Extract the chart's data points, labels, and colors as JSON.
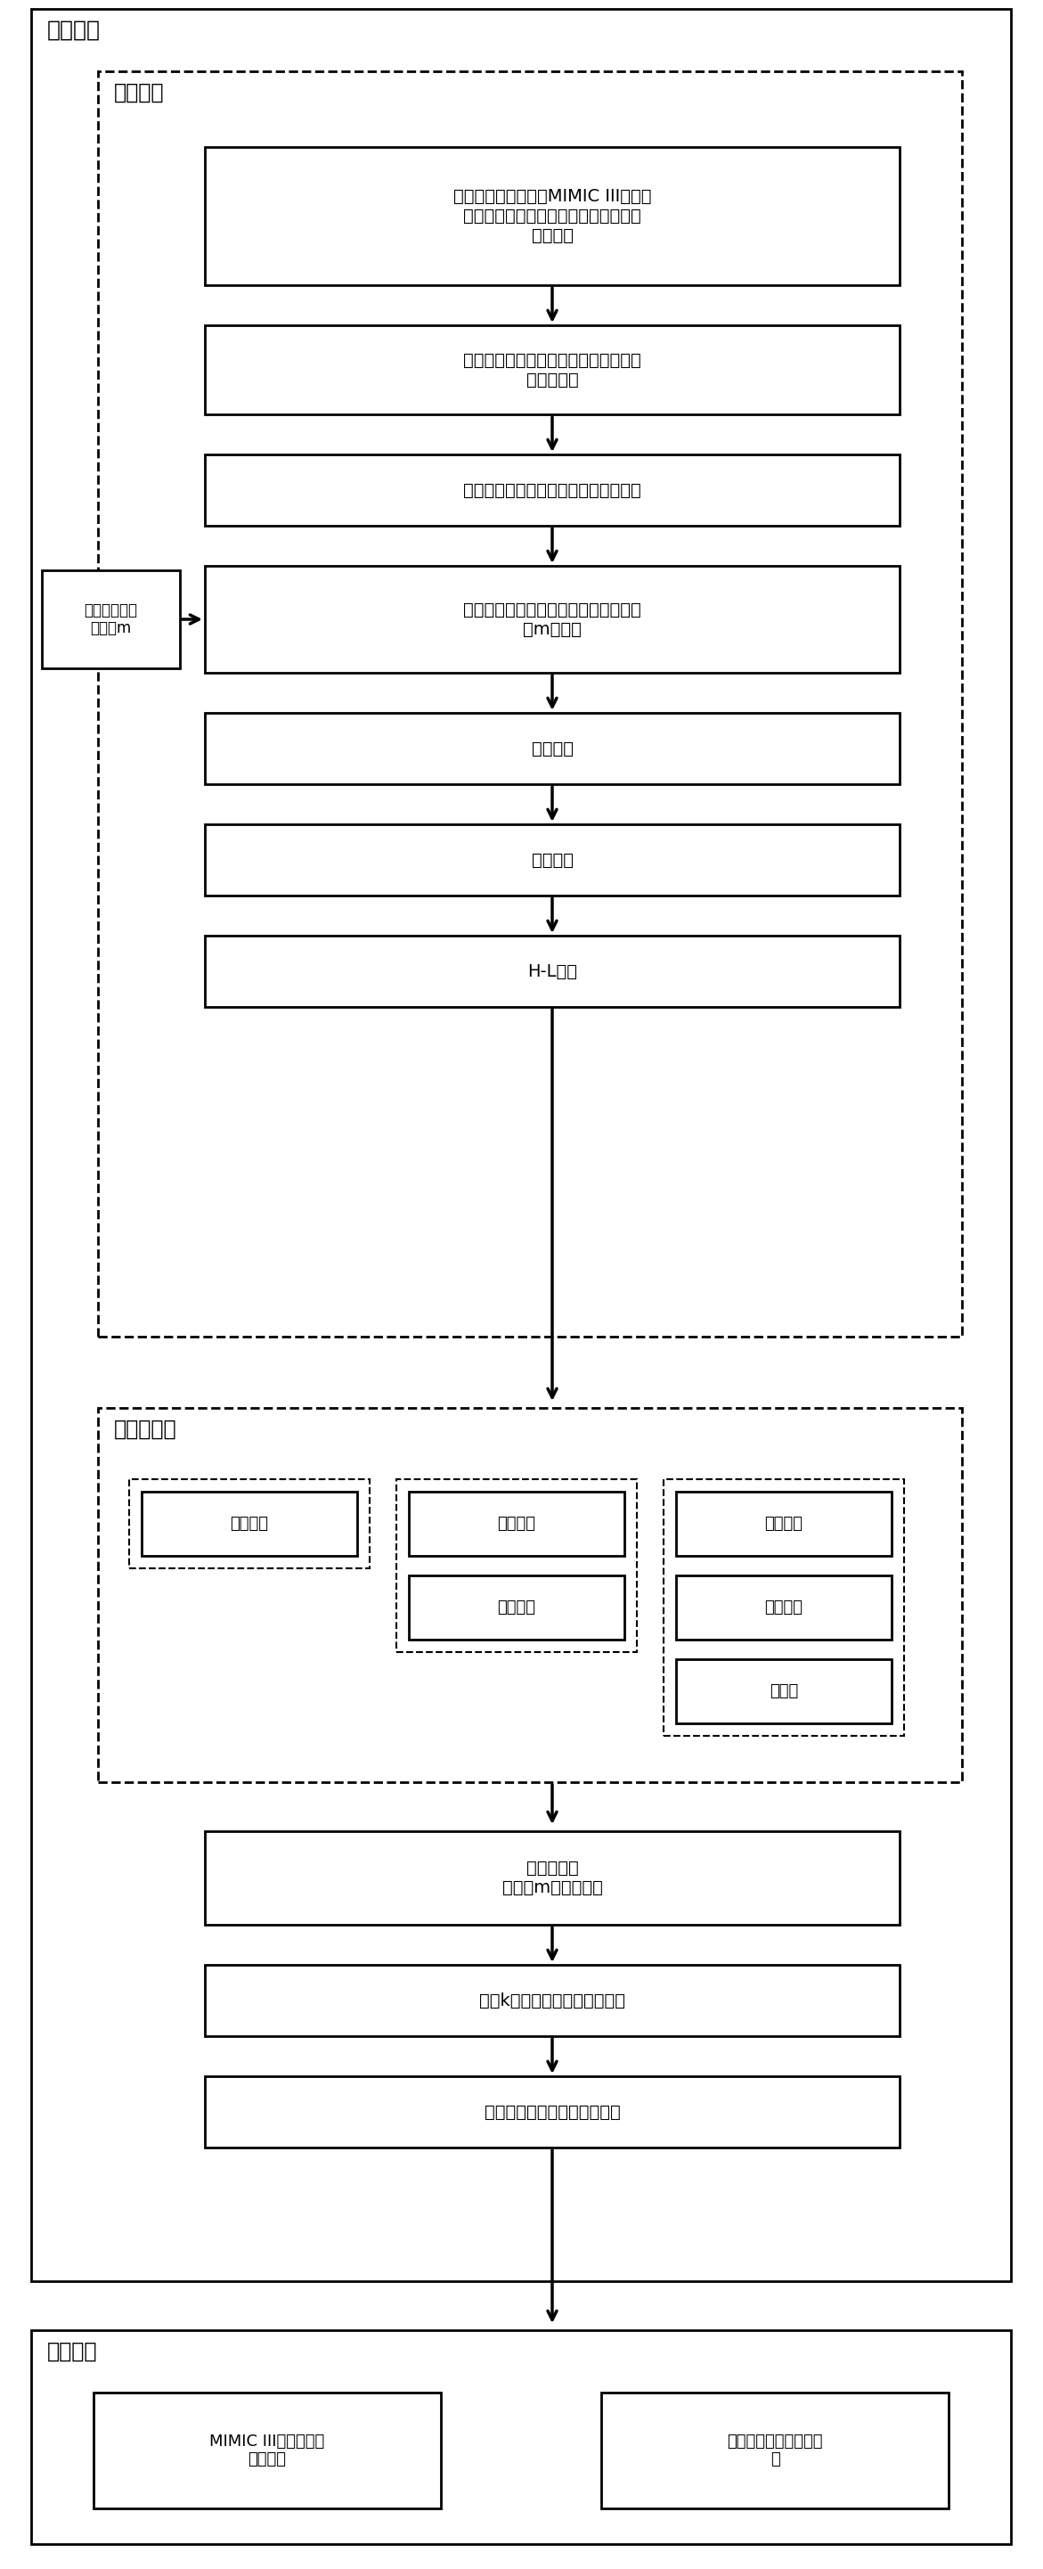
{
  "title_train": "训练模型",
  "title_data": "数据处理",
  "title_stage": "阶梯化指标",
  "title_eval": "模型评估",
  "box1_text": "根据纳入排除标准从MIMIC III数据库\n中提取病人的生理指标数据和再出血发\n病标识。",
  "box2_text": "在医生的指导下去除无用生理指标，减\n小搜索空间",
  "box3_text": "处理数据异常值，如编码非数值型数据",
  "box4_text": "删去最后训练集每个病人提前预测小时\n数m的数据",
  "box5_text": "线性补缺",
  "box6_text": "聚类补缺",
  "box7_text": "H-L检验",
  "box8_text": "构建分类器\n并预测m小时后结果",
  "box9_text": "根据k折交叉验证获得评分结果",
  "box10_text": "得到最优超参数和最优分类器",
  "left_box_text": "确定提前预测\n小时数m",
  "col1_boxes": [
    "生命体征"
  ],
  "col2_boxes": [
    "生命体征",
    "血气分析"
  ],
  "col3_boxes": [
    "生命体征",
    "血气分析",
    "血常规"
  ],
  "eval_box1": "MIMIC III数据库进行\n内部验证",
  "eval_box2": "急救数据库进行外部验\n证"
}
